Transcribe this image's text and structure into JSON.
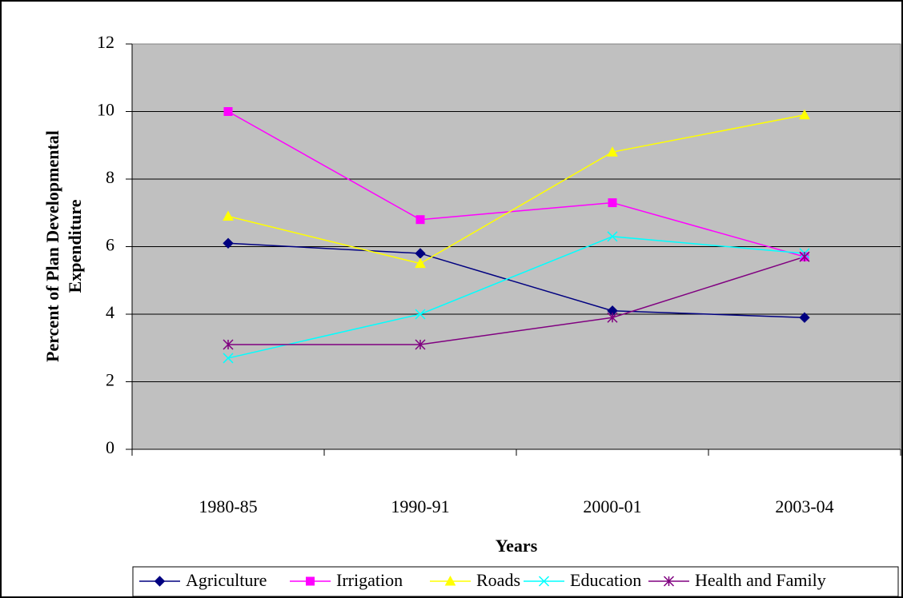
{
  "chart_data": {
    "type": "line",
    "ylabel": [
      "Percent of Plan Developmental",
      "Expenditure"
    ],
    "xlabel": "Years",
    "categories": [
      "1980-85",
      "1990-91",
      "2000-01",
      "2003-04"
    ],
    "series": [
      {
        "name": "Agriculture",
        "color": "#000080",
        "marker": "diamond",
        "values": [
          6.1,
          5.8,
          4.1,
          3.9
        ]
      },
      {
        "name": "Irrigation",
        "color": "#FF00FF",
        "marker": "square",
        "values": [
          10.0,
          6.8,
          7.3,
          5.7
        ]
      },
      {
        "name": "Roads",
        "color": "#FFFF00",
        "marker": "triangle",
        "values": [
          6.9,
          5.5,
          8.8,
          9.9
        ]
      },
      {
        "name": "Education",
        "color": "#00FFFF",
        "marker": "x",
        "values": [
          2.7,
          4.0,
          6.3,
          5.8
        ]
      },
      {
        "name": "Health and Family",
        "color": "#800080",
        "marker": "asterisk",
        "values": [
          3.1,
          3.1,
          3.9,
          5.7
        ]
      }
    ],
    "ylim": [
      0,
      12
    ],
    "yticks": [
      0,
      2,
      4,
      6,
      8,
      10,
      12
    ],
    "grid": true,
    "legend": "bottom"
  }
}
